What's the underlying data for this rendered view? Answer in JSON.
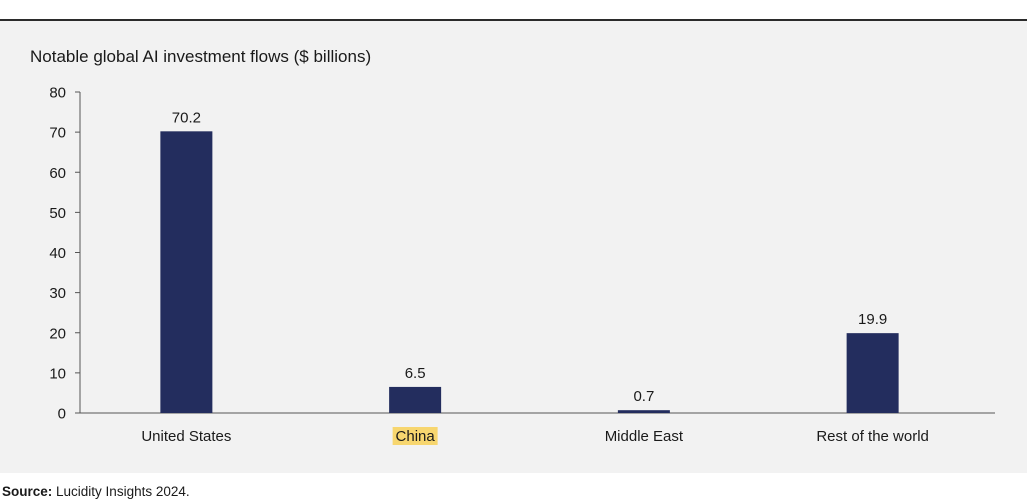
{
  "colors": {
    "bar": "#232d5e",
    "highlight": "#f7d66f",
    "axis": "#555555",
    "text": "#1a1a1a",
    "panel": "#f2f2f2"
  },
  "chart_data": {
    "type": "bar",
    "title": "Notable global AI investment flows ($ billions)",
    "categories": [
      "United States",
      "China",
      "Middle East",
      "Rest of the world"
    ],
    "values": [
      70.2,
      6.5,
      0.7,
      19.9
    ],
    "value_labels": [
      "70.2",
      "6.5",
      "0.7",
      "19.9"
    ],
    "highlighted_category": "China",
    "xlabel": "",
    "ylabel": "",
    "ylim": [
      0,
      80
    ],
    "yticks": [
      0,
      10,
      20,
      30,
      40,
      50,
      60,
      70,
      80
    ],
    "grid": false
  },
  "source": {
    "label": "Source:",
    "text": "Lucidity Insights 2024."
  }
}
